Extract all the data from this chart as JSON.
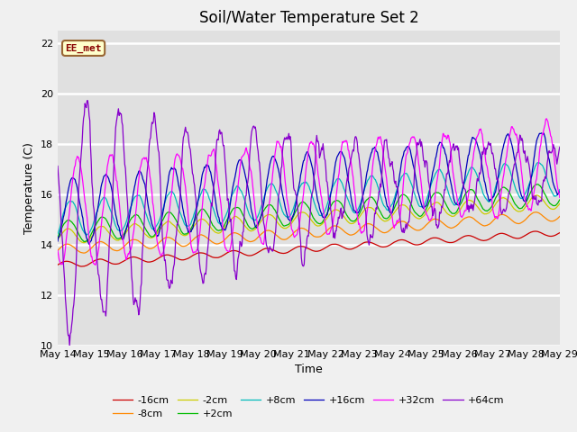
{
  "title": "Soil/Water Temperature Set 2",
  "xlabel": "Time",
  "ylabel": "Temperature (C)",
  "ylim": [
    10,
    22.5
  ],
  "x_tick_labels": [
    "May 14",
    "May 15",
    "May 16",
    "May 17",
    "May 18",
    "May 19",
    "May 20",
    "May 21",
    "May 22",
    "May 23",
    "May 24",
    "May 25",
    "May 26",
    "May 27",
    "May 28",
    "May 29"
  ],
  "yticks": [
    10,
    12,
    14,
    16,
    18,
    20,
    22
  ],
  "fig_bg": "#f0f0f0",
  "ax_bg": "#e0e0e0",
  "annotation_text": "EE_met",
  "annotation_bg": "#ffffcc",
  "annotation_border": "#996633",
  "annotation_text_color": "#880000",
  "series": [
    {
      "label": "-16cm",
      "color": "#cc0000",
      "base": 13.2,
      "trend": 0.085,
      "amp": 0.12,
      "phase": 0.0,
      "amp_decay": 0.0,
      "noise_scale": 0.04
    },
    {
      "label": "-8cm",
      "color": "#ff8800",
      "base": 13.8,
      "trend": 0.09,
      "amp": 0.2,
      "phase": 0.05,
      "amp_decay": 0.0,
      "noise_scale": 0.05
    },
    {
      "label": "-2cm",
      "color": "#cccc00",
      "base": 14.3,
      "trend": 0.095,
      "amp": 0.3,
      "phase": 0.1,
      "amp_decay": 0.0,
      "noise_scale": 0.06
    },
    {
      "label": "+2cm",
      "color": "#00bb00",
      "base": 14.5,
      "trend": 0.1,
      "amp": 0.45,
      "phase": 0.15,
      "amp_decay": 0.0,
      "noise_scale": 0.07
    },
    {
      "label": "+8cm",
      "color": "#00bbbb",
      "base": 15.0,
      "trend": 0.11,
      "amp": 0.7,
      "phase": 0.25,
      "amp_decay": 0.0,
      "noise_scale": 0.08
    },
    {
      "label": "+16cm",
      "color": "#0000bb",
      "base": 15.3,
      "trend": 0.13,
      "amp": 1.3,
      "phase": 0.4,
      "amp_decay": 0.0,
      "noise_scale": 0.1
    },
    {
      "label": "+32cm",
      "color": "#ff00ff",
      "base": 15.2,
      "trend": 0.13,
      "amp": 2.2,
      "phase": 0.7,
      "amp_decay": 0.3,
      "noise_scale": 0.12
    },
    {
      "label": "+64cm",
      "color": "#8800cc",
      "base": 15.0,
      "trend": 0.13,
      "amp": 4.5,
      "phase": 1.2,
      "amp_decay": 1.5,
      "noise_scale": 0.15
    }
  ],
  "title_fontsize": 12,
  "label_fontsize": 9,
  "tick_fontsize": 8,
  "legend_fontsize": 8
}
